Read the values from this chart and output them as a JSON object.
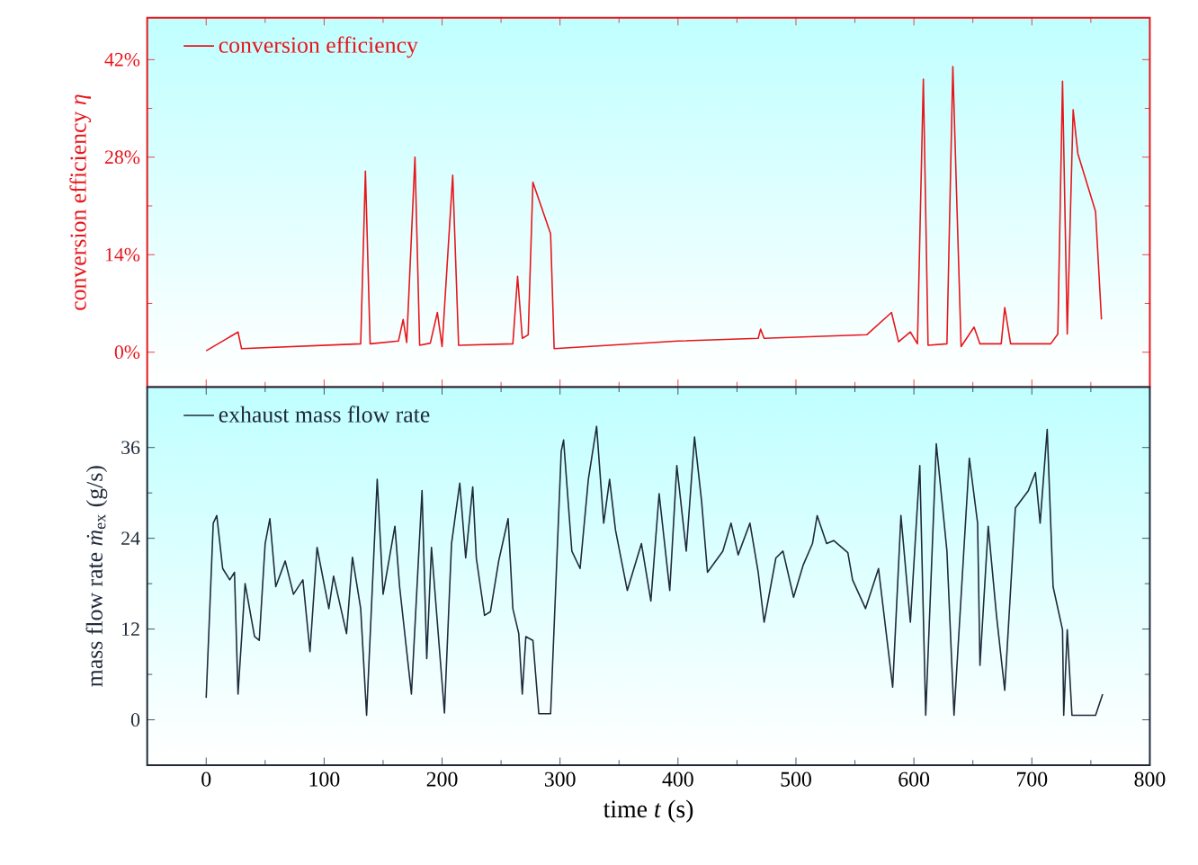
{
  "chart_data": [
    {
      "type": "line",
      "ylabel": "conversion efficiency *η*",
      "legend": "top left",
      "tick_labels": "y",
      "xlim": [
        -50,
        800
      ],
      "xticks": [
        0,
        100,
        200,
        300,
        400,
        500,
        600,
        700,
        800
      ],
      "ylim": [
        -5,
        48
      ],
      "yticks": [
        {
          "value": 0,
          "label": "0%"
        },
        {
          "value": 14,
          "label": "14%"
        },
        {
          "value": 28,
          "label": "28%"
        },
        {
          "value": 42,
          "label": "42%"
        }
      ],
      "x": [
        0,
        27,
        30,
        131,
        135,
        139,
        163,
        167,
        170,
        177,
        181,
        190,
        196,
        200,
        209,
        214,
        260,
        264,
        268,
        273,
        277,
        292,
        295,
        400,
        468,
        470,
        473,
        560,
        581,
        587,
        597,
        603,
        608,
        612,
        628,
        633,
        640,
        651,
        656,
        674,
        677,
        682,
        716,
        722,
        726,
        730,
        735,
        739,
        754,
        759
      ],
      "series": [
        {
          "name": "conversion efficiency",
          "color": "#e8151b",
          "values": [
            0.2,
            2.9,
            0.5,
            1.2,
            26,
            1.2,
            1.6,
            4.7,
            1.4,
            28,
            1,
            1.3,
            5.7,
            0.8,
            25.4,
            1,
            1.2,
            10.9,
            2,
            2.5,
            24.4,
            17,
            0.5,
            1.6,
            2,
            3.3,
            2,
            2.5,
            5.7,
            1.5,
            2.9,
            1.2,
            39.2,
            1,
            1.2,
            41,
            0.8,
            3.6,
            1.2,
            1.2,
            6.4,
            1.2,
            1.2,
            2.6,
            38.9,
            2.6,
            34.8,
            28.5,
            20.2,
            4.7
          ]
        }
      ]
    },
    {
      "type": "line",
      "ylabel": "mass flow rate *ṁ*$_{ex}$ (g/s)",
      "xlabel": "time *t* (s)",
      "legend": "top left",
      "xlim": [
        -50,
        800
      ],
      "xticks": [
        0,
        100,
        200,
        300,
        400,
        500,
        600,
        700,
        800
      ],
      "ylim": [
        -6,
        44
      ],
      "yticks": [
        0,
        12,
        24,
        36
      ],
      "x": [
        0,
        6,
        9,
        14,
        20,
        24,
        27,
        33,
        41,
        45,
        50,
        54,
        59,
        67,
        74,
        82,
        88,
        94,
        104,
        108,
        119,
        124,
        131,
        136,
        145,
        150,
        160,
        164,
        174,
        183,
        187,
        191,
        202,
        208,
        215,
        220,
        226,
        229,
        236,
        241,
        248,
        256,
        260,
        265,
        268,
        271,
        277,
        282,
        292,
        301,
        303,
        310,
        317,
        324,
        331,
        337,
        342,
        347,
        357,
        369,
        377,
        384,
        393,
        399,
        407,
        414,
        420,
        425,
        438,
        445,
        451,
        461,
        468,
        473,
        483,
        489,
        498,
        506,
        514,
        518,
        526,
        532,
        544,
        548,
        559,
        570,
        582,
        589,
        597,
        605,
        610,
        619,
        628,
        634,
        647,
        654,
        656,
        663,
        670,
        677,
        686,
        697,
        703,
        707,
        713,
        718,
        726,
        727,
        730,
        734,
        754,
        760
      ],
      "series": [
        {
          "name": "exhaust mass flow rate",
          "color": "#1f2a3a",
          "values": [
            2.9,
            26,
            27,
            20,
            18.5,
            19.5,
            3.4,
            18,
            11,
            10.5,
            23.3,
            26.6,
            17.6,
            21,
            16.6,
            18.5,
            9,
            22.8,
            14.7,
            19,
            11.4,
            21.5,
            14.7,
            0.6,
            31.8,
            16.6,
            25.6,
            17.6,
            3.4,
            30.3,
            8.1,
            22.8,
            0.9,
            23.3,
            31.3,
            21.4,
            30.8,
            21.4,
            13.8,
            14.3,
            21,
            26.6,
            14.7,
            11.4,
            3.4,
            11,
            10.5,
            0.8,
            0.8,
            35.5,
            37,
            22.3,
            20,
            31.8,
            38.8,
            26,
            31.8,
            25.1,
            17.1,
            23.3,
            15.7,
            29.9,
            17.1,
            33.6,
            22.3,
            37.4,
            28.9,
            19.5,
            22.3,
            26,
            21.8,
            26,
            19.5,
            12.9,
            21.4,
            22.3,
            16.2,
            20.4,
            23.3,
            27,
            23.3,
            23.7,
            22.1,
            18.5,
            14.7,
            20,
            4.3,
            27,
            12.9,
            33.6,
            0.6,
            36.5,
            22.3,
            0.6,
            34.6,
            26,
            7.2,
            25.6,
            13.8,
            3.9,
            28,
            30.3,
            32.7,
            26,
            38.4,
            17.6,
            11.9,
            0.6,
            11.9,
            0.6,
            0.6,
            3.4
          ]
        }
      ]
    }
  ]
}
